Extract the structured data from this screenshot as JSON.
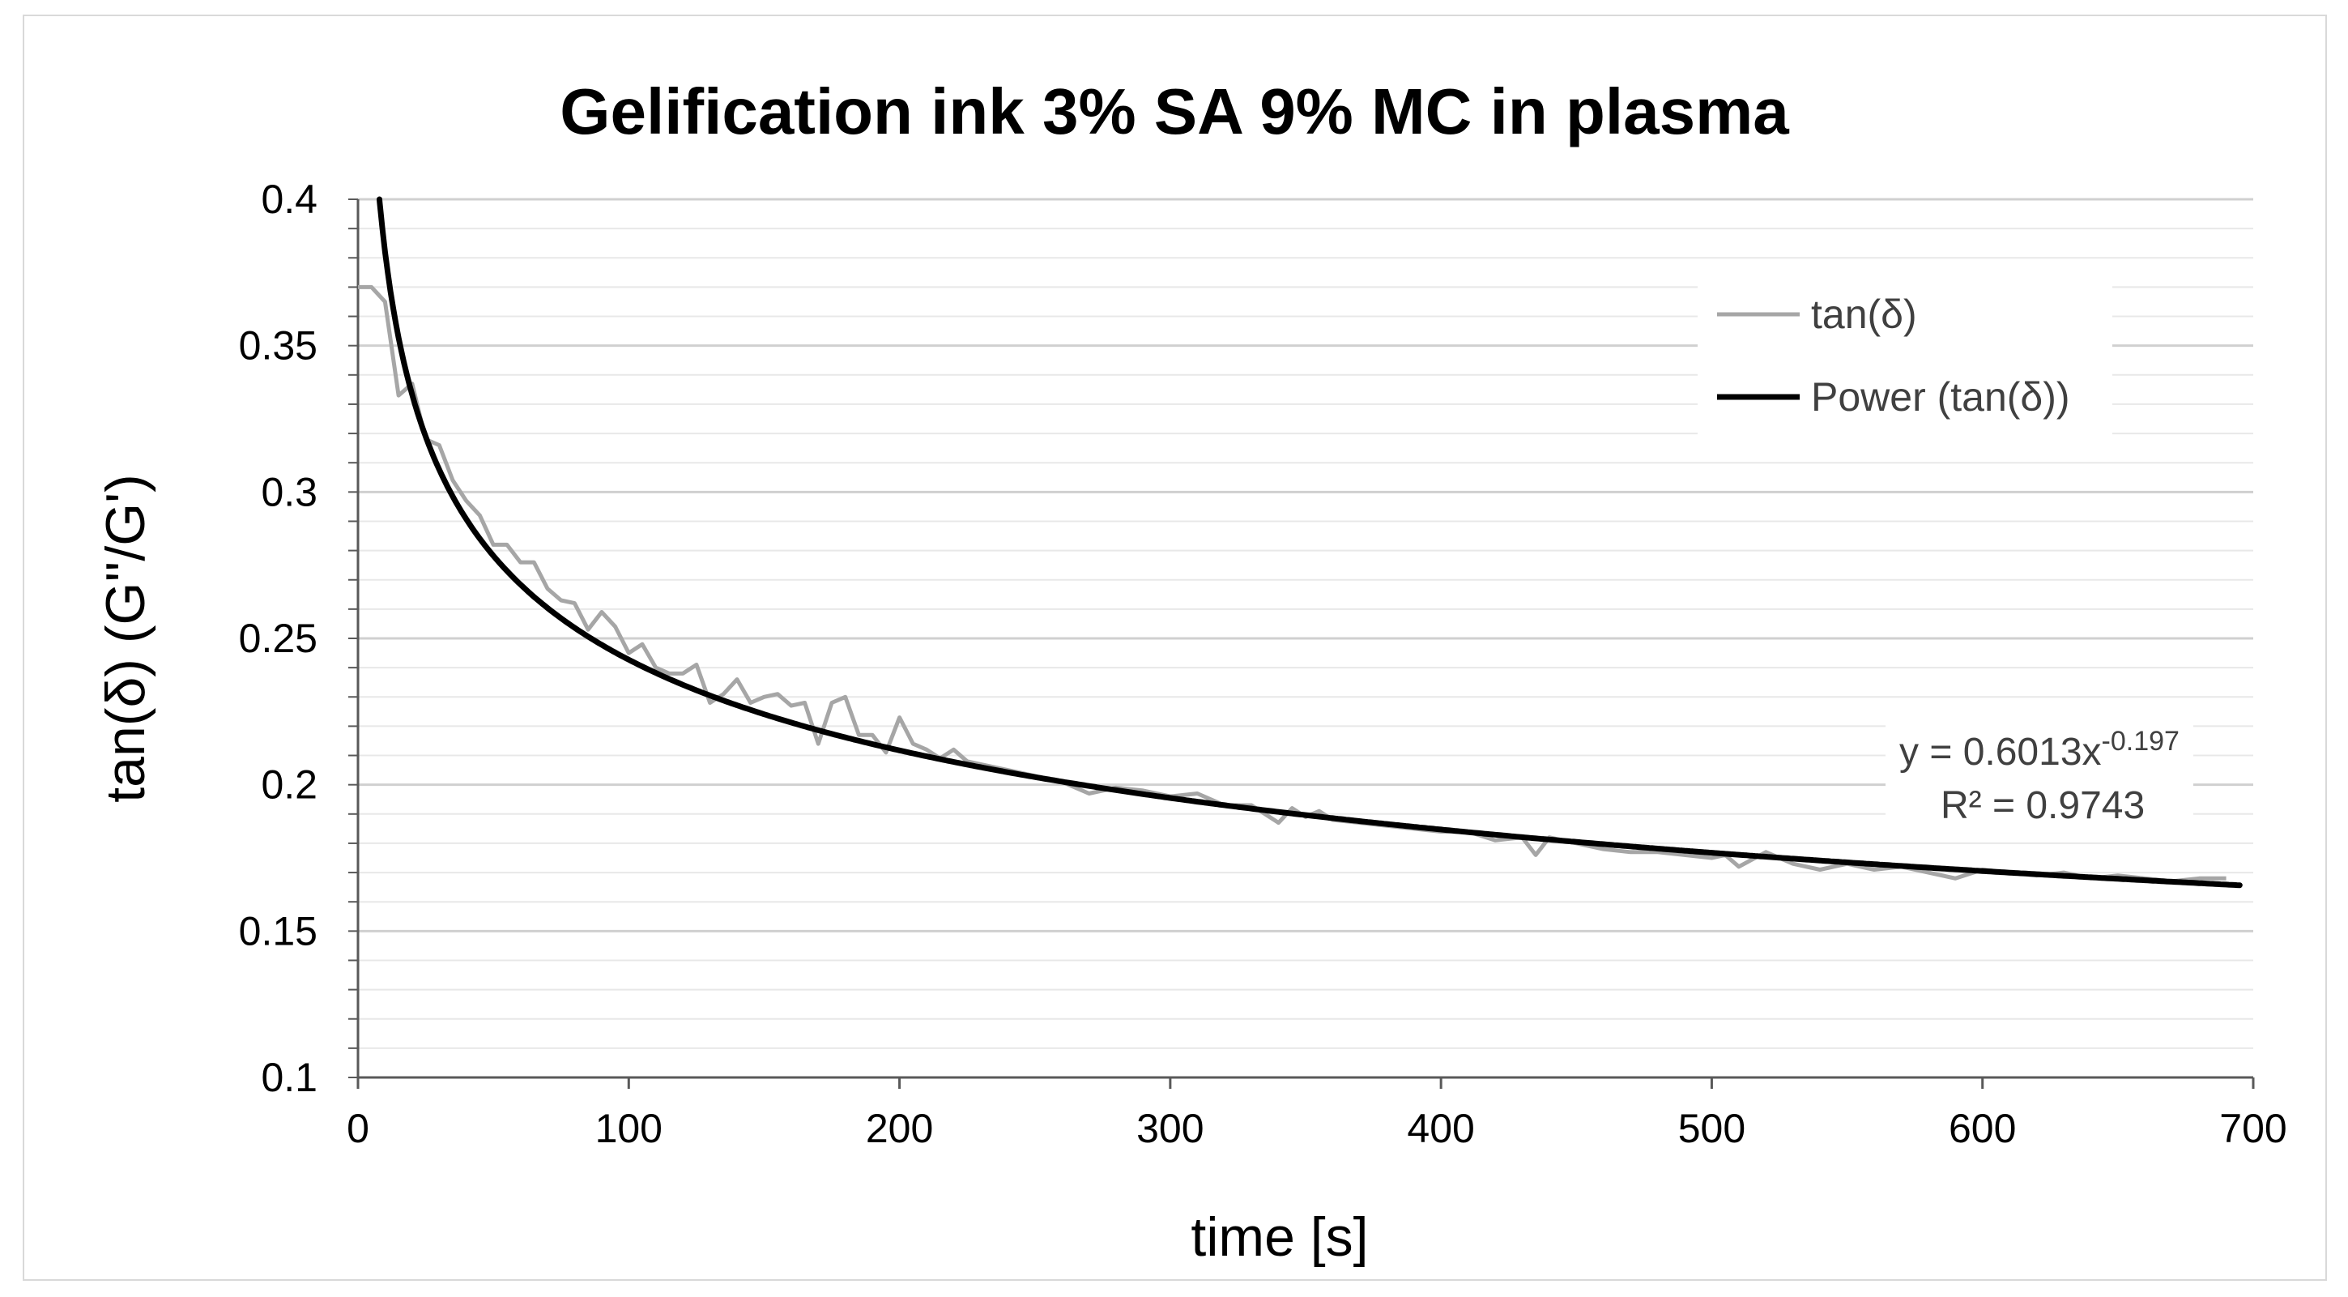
{
  "chart_data": {
    "type": "line",
    "title": "Gelification ink 3% SA 9% MC in plasma",
    "xlabel": "time [s]",
    "ylabel": "tan(δ)   (G''/G')",
    "xlim": [
      0,
      700
    ],
    "ylim": [
      0.1,
      0.4
    ],
    "x_ticks": [
      0,
      100,
      200,
      300,
      400,
      500,
      600,
      700
    ],
    "x_tick_labels": [
      "0",
      "100",
      "200",
      "300",
      "400",
      "500",
      "600",
      "700"
    ],
    "y_ticks": [
      0.1,
      0.15,
      0.2,
      0.25,
      0.3,
      0.35,
      0.4
    ],
    "y_tick_labels": [
      "0.1",
      "0.15",
      "0.2",
      "0.25",
      "0.3",
      "0.35",
      "0.4"
    ],
    "y_minor_step": 0.01,
    "grid": true,
    "legend": {
      "position": "top-right",
      "entries": [
        "tan(δ)",
        "Power (tan(δ))"
      ]
    },
    "series": [
      {
        "name": "tan(δ)",
        "color": "#a6a6a6",
        "x": [
          0,
          5,
          10,
          15,
          20,
          25,
          30,
          35,
          40,
          45,
          50,
          55,
          60,
          65,
          70,
          75,
          80,
          85,
          90,
          95,
          100,
          105,
          110,
          115,
          120,
          125,
          130,
          135,
          140,
          145,
          150,
          155,
          160,
          165,
          170,
          175,
          180,
          185,
          190,
          195,
          200,
          205,
          210,
          215,
          220,
          225,
          230,
          240,
          250,
          260,
          270,
          280,
          290,
          300,
          310,
          320,
          330,
          340,
          345,
          350,
          355,
          360,
          370,
          380,
          390,
          400,
          410,
          420,
          430,
          435,
          440,
          450,
          460,
          470,
          480,
          490,
          500,
          505,
          510,
          520,
          530,
          540,
          550,
          560,
          570,
          580,
          590,
          600,
          610,
          620,
          630,
          640,
          650,
          660,
          670,
          680,
          690
        ],
        "values": [
          0.37,
          0.37,
          0.365,
          0.333,
          0.337,
          0.318,
          0.316,
          0.304,
          0.297,
          0.292,
          0.282,
          0.282,
          0.276,
          0.276,
          0.267,
          0.263,
          0.262,
          0.253,
          0.259,
          0.254,
          0.245,
          0.248,
          0.24,
          0.238,
          0.238,
          0.241,
          0.228,
          0.231,
          0.236,
          0.228,
          0.23,
          0.231,
          0.227,
          0.228,
          0.214,
          0.228,
          0.23,
          0.217,
          0.217,
          0.211,
          0.223,
          0.214,
          0.212,
          0.209,
          0.212,
          0.208,
          0.207,
          0.205,
          0.203,
          0.201,
          0.197,
          0.199,
          0.198,
          0.196,
          0.197,
          0.193,
          0.193,
          0.187,
          0.192,
          0.189,
          0.191,
          0.188,
          0.187,
          0.186,
          0.185,
          0.184,
          0.184,
          0.181,
          0.182,
          0.176,
          0.182,
          0.18,
          0.178,
          0.177,
          0.177,
          0.176,
          0.175,
          0.176,
          0.172,
          0.177,
          0.173,
          0.171,
          0.173,
          0.171,
          0.172,
          0.17,
          0.168,
          0.171,
          0.17,
          0.169,
          0.17,
          0.168,
          0.169,
          0.168,
          0.167,
          0.168,
          0.168
        ]
      },
      {
        "name": "Power (tan(δ))",
        "color": "#000000",
        "fit": "power",
        "a": 0.6013,
        "b": -0.197,
        "x_range": [
          8,
          695
        ]
      }
    ],
    "annotations": {
      "equation_prefix": "y = 0.6013x",
      "equation_exponent": "-0.197",
      "r_squared": "R² = 0.9743"
    }
  }
}
